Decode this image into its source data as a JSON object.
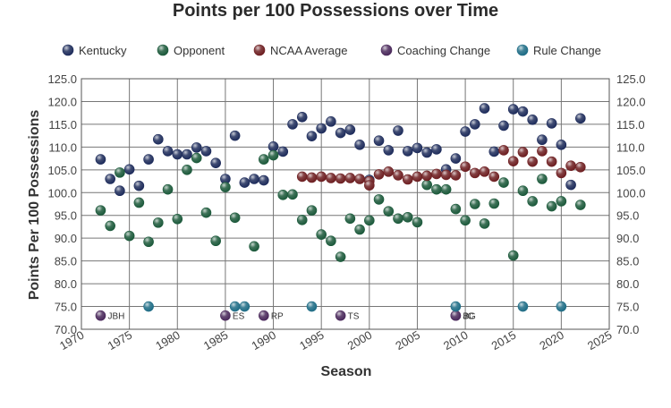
{
  "chart_data": {
    "type": "scatter",
    "title": "Points per 100 Possessions over Time",
    "xlabel": "Season",
    "ylabel": "Points Per 100 Possessions",
    "xlim": [
      1970,
      2025
    ],
    "ylim": [
      70,
      125
    ],
    "x_ticks": [
      1970,
      1975,
      1980,
      1985,
      1990,
      1995,
      2000,
      2005,
      2010,
      2015,
      2020,
      2025
    ],
    "y_ticks": [
      "70.0",
      "75.0",
      "80.0",
      "85.0",
      "90.0",
      "95.0",
      "100.0",
      "105.0",
      "110.0",
      "115.0",
      "120.0",
      "125.0"
    ],
    "grid": true,
    "legend_position": "top",
    "series": [
      {
        "name": "Kentucky",
        "color": "#1f2d5c",
        "x": [
          1972,
          1973,
          1974,
          1975,
          1976,
          1977,
          1978,
          1979,
          1980,
          1981,
          1982,
          1983,
          1984,
          1985,
          1986,
          1987,
          1988,
          1989,
          1990,
          1991,
          1992,
          1993,
          1994,
          1995,
          1996,
          1997,
          1998,
          1999,
          2000,
          2001,
          2002,
          2003,
          2004,
          2005,
          2006,
          2007,
          2008,
          2009,
          2010,
          2011,
          2012,
          2013,
          2014,
          2015,
          2016,
          2017,
          2018,
          2019,
          2020,
          2021,
          2022
        ],
        "values": [
          107.3,
          103.0,
          100.4,
          105.1,
          101.5,
          107.3,
          111.7,
          109.1,
          108.4,
          108.4,
          109.9,
          109.1,
          106.5,
          103.0,
          112.5,
          102.2,
          103.0,
          102.7,
          110.1,
          109.0,
          115.0,
          116.6,
          112.4,
          114.1,
          115.6,
          113.1,
          113.8,
          110.5,
          102.8,
          111.4,
          109.3,
          113.6,
          109.1,
          109.8,
          108.8,
          109.5,
          105.1,
          107.5,
          113.4,
          115.0,
          118.5,
          109.0,
          114.7,
          118.3,
          117.8,
          116.0,
          111.6,
          115.2,
          110.5,
          101.7,
          116.3
        ]
      },
      {
        "name": "Opponent",
        "color": "#1d5a3c",
        "x": [
          1972,
          1973,
          1974,
          1975,
          1976,
          1977,
          1978,
          1979,
          1980,
          1981,
          1982,
          1983,
          1984,
          1985,
          1986,
          1988,
          1989,
          1990,
          1991,
          1992,
          1993,
          1994,
          1995,
          1996,
          1997,
          1998,
          1999,
          2000,
          2001,
          2002,
          2003,
          2004,
          2005,
          2006,
          2007,
          2008,
          2009,
          2010,
          2011,
          2012,
          2013,
          2014,
          2015,
          2016,
          2017,
          2018,
          2019,
          2020,
          2022
        ],
        "values": [
          96.1,
          92.7,
          104.4,
          90.5,
          97.8,
          89.2,
          93.4,
          100.7,
          94.2,
          105.0,
          107.6,
          95.6,
          89.4,
          101.2,
          94.5,
          88.2,
          107.3,
          108.2,
          99.5,
          99.6,
          94.0,
          96.1,
          90.8,
          89.4,
          85.9,
          94.3,
          91.9,
          93.9,
          98.5,
          95.9,
          94.3,
          94.6,
          93.5,
          101.7,
          100.7,
          100.7,
          96.4,
          93.9,
          97.5,
          93.2,
          97.6,
          102.2,
          86.2,
          100.4,
          98.1,
          103.0,
          97.0,
          98.1,
          97.3
        ]
      },
      {
        "name": "NCAA Average",
        "color": "#6e1f22",
        "x": [
          1993,
          1994,
          1995,
          1996,
          1997,
          1998,
          1999,
          2000,
          2000,
          2001,
          2002,
          2003,
          2004,
          2005,
          2006,
          2007,
          2008,
          2009,
          2010,
          2011,
          2012,
          2013,
          2014,
          2015,
          2016,
          2017,
          2018,
          2019,
          2020,
          2021,
          2022
        ],
        "values": [
          103.5,
          103.3,
          103.5,
          103.2,
          103.1,
          103.2,
          103.0,
          102.5,
          101.6,
          104.0,
          104.6,
          103.8,
          102.9,
          103.5,
          103.7,
          104.1,
          103.9,
          103.8,
          105.7,
          104.3,
          104.6,
          103.5,
          109.3,
          106.9,
          108.9,
          106.8,
          109.1,
          106.8,
          104.3,
          105.9,
          105.6
        ]
      },
      {
        "name": "Coaching Change",
        "color": "#4b2a5c",
        "x": [
          1972,
          1985,
          1989,
          1997,
          2009,
          2009
        ],
        "values": [
          73,
          73,
          73,
          73,
          73,
          73
        ],
        "labels": [
          "JBH",
          "ES",
          "RP",
          "TS",
          "BG",
          "JC"
        ]
      },
      {
        "name": "Rule Change",
        "color": "#1f6d86",
        "x": [
          1977,
          1986,
          1987,
          1994,
          2009,
          2016,
          2020
        ],
        "values": [
          75,
          75,
          75,
          75,
          75,
          75,
          75
        ]
      }
    ]
  }
}
